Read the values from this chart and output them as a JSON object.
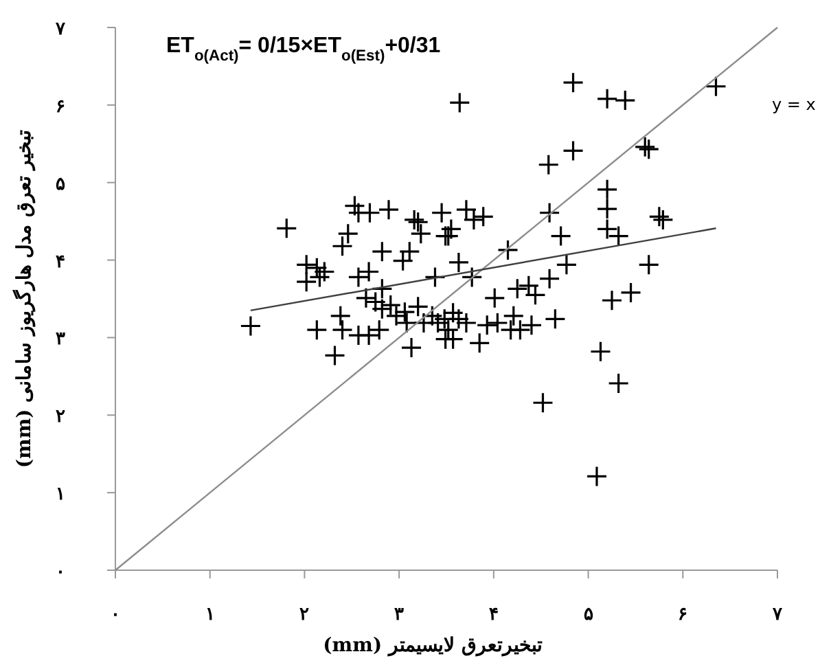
{
  "chart_data": {
    "type": "scatter",
    "xlabel": "تبخیرتعرق لایسیمتر (mm)",
    "ylabel": "تبخیر تعرق مدل هارگریوز سامانی (mm)",
    "xlim": [
      0,
      7
    ],
    "ylim": [
      0,
      7
    ],
    "xticks": [
      {
        "value": 0,
        "label": "۰"
      },
      {
        "value": 1,
        "label": "۱"
      },
      {
        "value": 2,
        "label": "۲"
      },
      {
        "value": 3,
        "label": "۳"
      },
      {
        "value": 4,
        "label": "۴"
      },
      {
        "value": 5,
        "label": "۵"
      },
      {
        "value": 6,
        "label": "۶"
      },
      {
        "value": 7,
        "label": "۷"
      }
    ],
    "yticks": [
      {
        "value": 0,
        "label": "۰"
      },
      {
        "value": 1,
        "label": "۱"
      },
      {
        "value": 2,
        "label": "۲"
      },
      {
        "value": 3,
        "label": "۳"
      },
      {
        "value": 4,
        "label": "۴"
      },
      {
        "value": 5,
        "label": "۵"
      },
      {
        "value": 6,
        "label": "۶"
      },
      {
        "value": 7,
        "label": "۷"
      }
    ],
    "grid": false,
    "annotations": [
      "ET$_{o(Act)}$= 0/15×ET$_{o(Est)}$+0/31"
    ],
    "series": [
      {
        "marker": "cross",
        "color": "#000000",
        "x": [
          1.43,
          1.81,
          2.53,
          2.57,
          2.69,
          2.89,
          3.16,
          3.2,
          3.45,
          3.23,
          3.49,
          2.46,
          2.4,
          2.82,
          3.11,
          3.04,
          2.02,
          2.13,
          2.21,
          2.02,
          2.16,
          2.57,
          2.68,
          2.82,
          3.38,
          2.65,
          2.75,
          2.82,
          2.91,
          2.97,
          3.06,
          3.2,
          3.35,
          3.48,
          3.08,
          3.26,
          3.41,
          3.52,
          2.38,
          2.13,
          2.4,
          2.57,
          2.68,
          2.79,
          3.13,
          2.32,
          3.49,
          3.71,
          3.89,
          3.79,
          3.55,
          3.52,
          4.59,
          5.2,
          5.75,
          5.79,
          5.2,
          5.32,
          4.71,
          4.15,
          3.63,
          4.77,
          5.64,
          3.77,
          4.01,
          4.25,
          4.37,
          4.44,
          4.59,
          5.25,
          5.45,
          3.57,
          3.63,
          3.71,
          4.04,
          4.21,
          4.18,
          4.28,
          4.4,
          4.65,
          3.57,
          3.85,
          5.13,
          5.32,
          4.52,
          5.09,
          3.64,
          4.84,
          5.2,
          5.39,
          6.35,
          4.84,
          4.58,
          5.6,
          5.64,
          5.2,
          3.93
        ],
        "values": [
          3.15,
          4.41,
          4.7,
          4.61,
          4.61,
          4.65,
          4.52,
          4.49,
          4.61,
          4.34,
          4.31,
          4.34,
          4.18,
          4.11,
          4.11,
          3.99,
          3.94,
          3.9,
          3.85,
          3.72,
          3.78,
          3.78,
          3.85,
          3.63,
          3.78,
          3.51,
          3.46,
          3.37,
          3.42,
          3.28,
          3.33,
          3.4,
          3.28,
          3.24,
          3.19,
          3.19,
          3.19,
          3.1,
          3.28,
          3.1,
          3.1,
          3.03,
          3.03,
          3.1,
          2.87,
          2.77,
          2.98,
          4.65,
          4.56,
          4.52,
          4.4,
          4.31,
          4.61,
          4.66,
          4.56,
          4.52,
          4.4,
          4.31,
          4.31,
          4.13,
          3.97,
          3.94,
          3.94,
          3.78,
          3.51,
          3.63,
          3.67,
          3.55,
          3.76,
          3.48,
          3.58,
          3.32,
          3.24,
          3.19,
          3.19,
          3.28,
          3.1,
          3.1,
          3.16,
          3.24,
          2.98,
          2.93,
          2.82,
          2.41,
          2.16,
          1.21,
          6.03,
          6.29,
          6.08,
          6.06,
          6.24,
          5.41,
          5.23,
          5.46,
          5.43,
          4.91,
          3.16
        ]
      },
      {
        "type": "line",
        "name": "y = x",
        "color": "#8c8c8c",
        "x": [
          0,
          7
        ],
        "values": [
          0,
          7
        ]
      },
      {
        "type": "line",
        "color": "#404040",
        "x": [
          1.43,
          6.35
        ],
        "values": [
          3.35,
          4.41
        ]
      }
    ]
  }
}
